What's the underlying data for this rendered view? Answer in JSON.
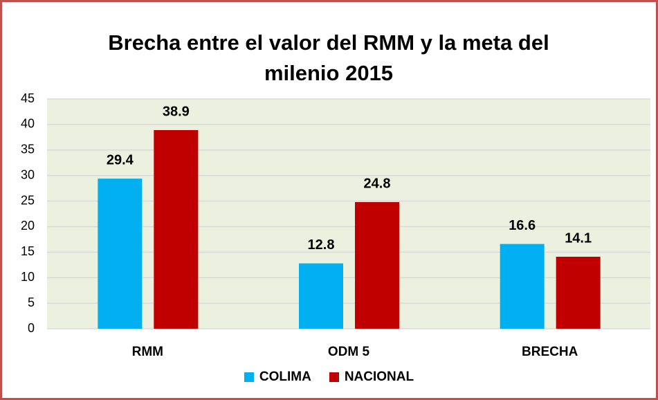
{
  "chart_data": {
    "type": "bar",
    "title": "Brecha entre el valor del RMM y la meta del milenio 2015",
    "categories": [
      "RMM",
      "ODM 5",
      "BRECHA"
    ],
    "series": [
      {
        "name": "COLIMA",
        "color": "#00b0f0",
        "values": [
          29.4,
          12.8,
          16.6
        ]
      },
      {
        "name": "NACIONAL",
        "color": "#c00000",
        "values": [
          38.9,
          24.8,
          14.1
        ]
      }
    ],
    "ylim": [
      0,
      45
    ],
    "yticks": [
      0,
      5,
      10,
      15,
      20,
      25,
      30,
      35,
      40,
      45
    ],
    "grid": true,
    "legend": "bottom"
  }
}
